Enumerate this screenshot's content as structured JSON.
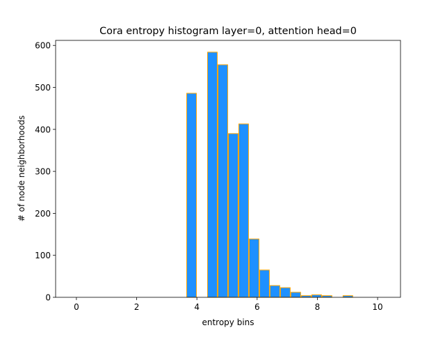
{
  "chart_data": {
    "type": "bar",
    "title": "Cora entropy histogram layer=0, attention head=0",
    "xlabel": "entropy bins",
    "ylabel": "# of node neighborhoods",
    "xlim": [
      -0.69,
      10.76
    ],
    "ylim": [
      0,
      612
    ],
    "xticks": [
      0,
      2,
      4,
      6,
      8,
      10
    ],
    "yticks": [
      0,
      100,
      200,
      300,
      400,
      500,
      600
    ],
    "bin_width": 0.346,
    "bar_color": "#1e90ff",
    "edge_color": "#ffa500",
    "grid": false,
    "bins": [
      {
        "start": 3.65,
        "value": 486
      },
      {
        "start": 4.342,
        "value": 584
      },
      {
        "start": 4.688,
        "value": 554
      },
      {
        "start": 5.034,
        "value": 390
      },
      {
        "start": 5.38,
        "value": 413
      },
      {
        "start": 5.726,
        "value": 139
      },
      {
        "start": 6.072,
        "value": 65
      },
      {
        "start": 6.418,
        "value": 28
      },
      {
        "start": 6.764,
        "value": 23
      },
      {
        "start": 7.11,
        "value": 12
      },
      {
        "start": 7.456,
        "value": 4
      },
      {
        "start": 7.802,
        "value": 6
      },
      {
        "start": 8.148,
        "value": 4
      },
      {
        "start": 8.84,
        "value": 4
      }
    ]
  }
}
